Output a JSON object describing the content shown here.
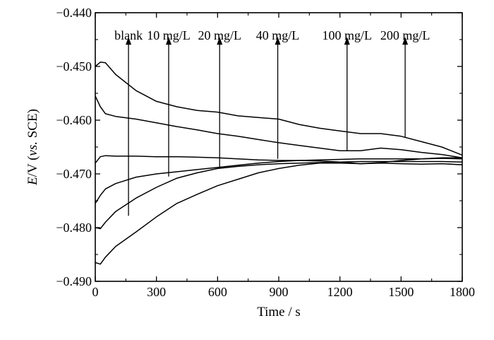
{
  "chart_data": {
    "type": "line",
    "xlabel": "Time / s",
    "ylabel": {
      "e": "E",
      "slash_v": "/V (",
      "vs": "vs.",
      "sce": " SCE)"
    },
    "xlim": [
      0,
      1800
    ],
    "ylim": [
      -0.49,
      -0.44
    ],
    "x_ticks": [
      0,
      300,
      600,
      900,
      1200,
      1500,
      1800
    ],
    "x_tick_labels": [
      "0",
      "300",
      "600",
      "900",
      "1200",
      "1500",
      "1800"
    ],
    "y_ticks": [
      -0.44,
      -0.45,
      -0.46,
      -0.47,
      -0.48,
      -0.49
    ],
    "y_tick_labels": [
      "−0.440",
      "−0.450",
      "−0.460",
      "−0.470",
      "−0.480",
      "−0.490"
    ],
    "grid": false,
    "series": [
      {
        "name": "blank",
        "x": [
          0,
          25,
          50,
          100,
          200,
          300,
          400,
          500,
          600,
          700,
          800,
          900,
          1000,
          1100,
          1200,
          1300,
          1400,
          1500,
          1600,
          1700,
          1800
        ],
        "y": [
          -0.4865,
          -0.4868,
          -0.4855,
          -0.4835,
          -0.4808,
          -0.478,
          -0.4755,
          -0.4738,
          -0.4722,
          -0.471,
          -0.4698,
          -0.469,
          -0.4684,
          -0.468,
          -0.468,
          -0.4681,
          -0.468,
          -0.4681,
          -0.4682,
          -0.4681,
          -0.4683
        ]
      },
      {
        "name": "10 mg/L",
        "x": [
          0,
          25,
          50,
          100,
          200,
          300,
          400,
          500,
          600,
          700,
          800,
          900,
          1000,
          1100,
          1200,
          1300,
          1400,
          1500,
          1600,
          1700,
          1800
        ],
        "y": [
          -0.48,
          -0.4802,
          -0.479,
          -0.477,
          -0.4745,
          -0.4725,
          -0.4708,
          -0.4698,
          -0.469,
          -0.4686,
          -0.4683,
          -0.4681,
          -0.468,
          -0.4679,
          -0.4678,
          -0.4677,
          -0.4677,
          -0.4677,
          -0.4677,
          -0.4677,
          -0.4678
        ]
      },
      {
        "name": "20 mg/L",
        "x": [
          0,
          25,
          50,
          100,
          200,
          300,
          400,
          500,
          600,
          700,
          800,
          900,
          1000,
          1100,
          1200,
          1300,
          1400,
          1500,
          1600,
          1700,
          1800
        ],
        "y": [
          -0.4755,
          -0.474,
          -0.4728,
          -0.4718,
          -0.4706,
          -0.47,
          -0.4696,
          -0.4692,
          -0.4688,
          -0.4684,
          -0.468,
          -0.4677,
          -0.4675,
          -0.4674,
          -0.4673,
          -0.4672,
          -0.4672,
          -0.4672,
          -0.4672,
          -0.4671,
          -0.4672
        ]
      },
      {
        "name": "40 mg/L",
        "x": [
          0,
          25,
          50,
          100,
          200,
          300,
          400,
          500,
          600,
          700,
          800,
          900,
          1000,
          1100,
          1200,
          1300,
          1400,
          1500,
          1600,
          1700,
          1800
        ],
        "y": [
          -0.468,
          -0.4668,
          -0.4666,
          -0.4667,
          -0.4667,
          -0.4668,
          -0.4668,
          -0.4669,
          -0.467,
          -0.4672,
          -0.4674,
          -0.4675,
          -0.4675,
          -0.4676,
          -0.4678,
          -0.4681,
          -0.4679,
          -0.4675,
          -0.4672,
          -0.467,
          -0.467
        ]
      },
      {
        "name": "100 mg/L",
        "x": [
          0,
          25,
          50,
          100,
          200,
          300,
          400,
          500,
          600,
          700,
          800,
          900,
          1000,
          1100,
          1200,
          1300,
          1400,
          1500,
          1600,
          1700,
          1800
        ],
        "y": [
          -0.4555,
          -0.4575,
          -0.4588,
          -0.4593,
          -0.4598,
          -0.4605,
          -0.4612,
          -0.4618,
          -0.4625,
          -0.463,
          -0.4636,
          -0.4642,
          -0.4647,
          -0.4652,
          -0.4657,
          -0.4657,
          -0.4652,
          -0.4655,
          -0.466,
          -0.4664,
          -0.467
        ]
      },
      {
        "name": "200 mg/L",
        "x": [
          0,
          25,
          50,
          100,
          200,
          300,
          400,
          500,
          600,
          700,
          800,
          900,
          1000,
          1100,
          1200,
          1300,
          1400,
          1500,
          1600,
          1700,
          1800
        ],
        "y": [
          -0.45,
          -0.4492,
          -0.4493,
          -0.4515,
          -0.4545,
          -0.4565,
          -0.4575,
          -0.4582,
          -0.4585,
          -0.4592,
          -0.4595,
          -0.4598,
          -0.4608,
          -0.4615,
          -0.462,
          -0.4625,
          -0.4625,
          -0.463,
          -0.464,
          -0.465,
          -0.4665
        ]
      }
    ],
    "arrows": [
      {
        "x": 163,
        "y_from": -0.4778,
        "y_to": -0.4445
      },
      {
        "x": 360,
        "y_from": -0.4705,
        "y_to": -0.4445
      },
      {
        "x": 610,
        "y_from": -0.469,
        "y_to": -0.4445
      },
      {
        "x": 895,
        "y_from": -0.4672,
        "y_to": -0.4445
      },
      {
        "x": 1235,
        "y_from": -0.4657,
        "y_to": -0.4445
      },
      {
        "x": 1520,
        "y_from": -0.4632,
        "y_to": -0.4445
      }
    ],
    "legend_labels": [
      {
        "text": "blank",
        "x": 163
      },
      {
        "text": "10 mg/L",
        "x": 360
      },
      {
        "text": "20 mg/L",
        "x": 610
      },
      {
        "text": "40 mg/L",
        "x": 895
      },
      {
        "text": "100 mg/L",
        "x": 1235
      },
      {
        "text": "200 mg/L",
        "x": 1520
      }
    ]
  }
}
